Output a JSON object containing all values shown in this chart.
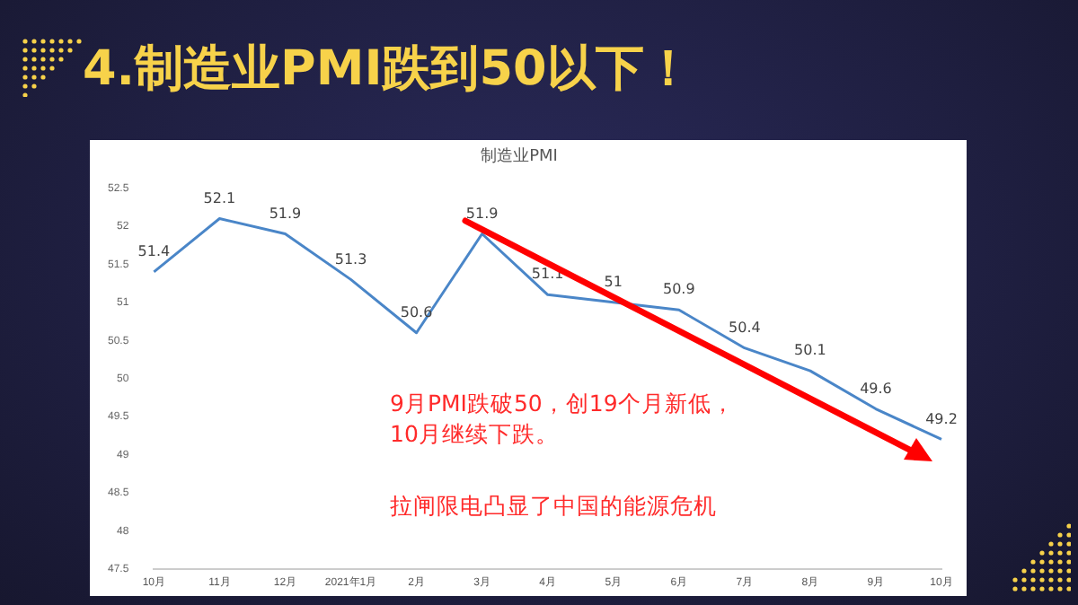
{
  "chart_data": {
    "type": "line",
    "title": "4.制造业PMI跌到50以下！",
    "subtitle": "制造业PMI",
    "categories": [
      "10月",
      "11月",
      "12月",
      "2021年1月",
      "2月",
      "3月",
      "4月",
      "5月",
      "6月",
      "7月",
      "8月",
      "9月",
      "10月"
    ],
    "series": [
      {
        "color": "#4a86c8",
        "values": [
          51.4,
          52.1,
          51.9,
          51.3,
          50.6,
          51.9,
          51.1,
          51,
          50.9,
          50.4,
          50.1,
          49.6,
          49.2
        ]
      }
    ],
    "ylim": [
      47.5,
      52.5
    ],
    "yticks": [
      47.5,
      48,
      48.5,
      49,
      49.5,
      50,
      50.5,
      51,
      51.5,
      52,
      52.5
    ],
    "grid": false,
    "legend": false,
    "marker": "none",
    "data_labels": true,
    "annotations": [
      "9月PMI跌破50，创19个月新低，\n10月继续下跌。",
      "拉闸限电凸显了中国的能源危机"
    ]
  }
}
